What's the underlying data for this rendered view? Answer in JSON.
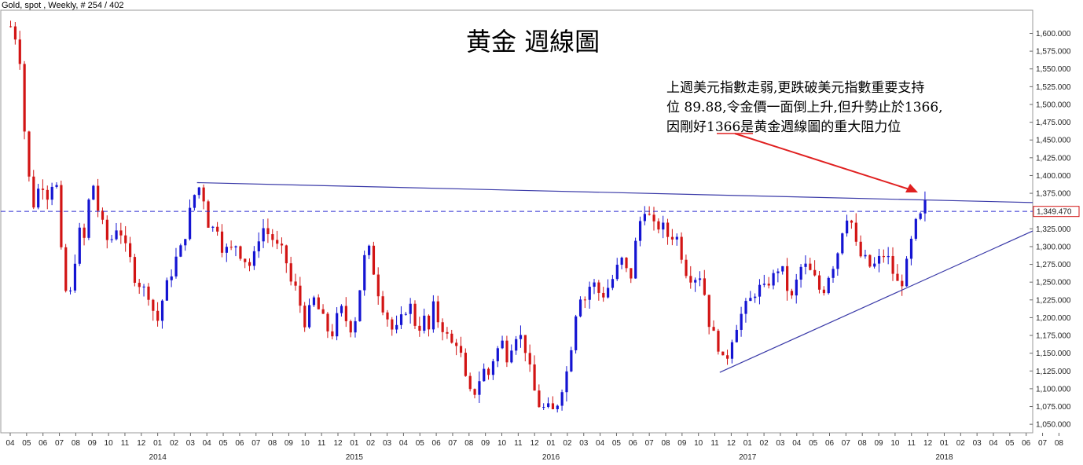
{
  "header": {
    "instrument": "Gold, spot , Weekly, # 254 / 402"
  },
  "colors": {
    "up": "#1414d2",
    "down": "#d21414",
    "trendline": "#3a3aa8",
    "price_line": "#2a2ad0",
    "arrow": "#e02020",
    "last_price_box": "#d21414"
  },
  "chart_data": {
    "type": "candlestick",
    "title": "黄金 週線圖",
    "annotation_lines": [
      "上週美元指數走弱,更跌破美元指數重要支持",
      "位 89.88,令金價一面倒上升,但升勢止於1366,",
      "因剛好1366是黄金週線圖的重大阻力位"
    ],
    "last_price": 1349.47,
    "last_price_label": "1,349.470",
    "ylim": [
      1040,
      1625
    ],
    "y_ticks": [
      {
        "value": 1600,
        "label": "1,600.000"
      },
      {
        "value": 1575,
        "label": "1,575.000"
      },
      {
        "value": 1550,
        "label": "1,550.000"
      },
      {
        "value": 1525,
        "label": "1,525.000"
      },
      {
        "value": 1500,
        "label": "1,500.000"
      },
      {
        "value": 1475,
        "label": "1,475.000"
      },
      {
        "value": 1450,
        "label": "1,450.000"
      },
      {
        "value": 1425,
        "label": "1,425.000"
      },
      {
        "value": 1400,
        "label": "1,400.000"
      },
      {
        "value": 1375,
        "label": "1,375.000"
      },
      {
        "value": 1325,
        "label": "1,325.000"
      },
      {
        "value": 1300,
        "label": "1,300.000"
      },
      {
        "value": 1275,
        "label": "1,275.000"
      },
      {
        "value": 1250,
        "label": "1,250.000"
      },
      {
        "value": 1225,
        "label": "1,225.000"
      },
      {
        "value": 1200,
        "label": "1,200.000"
      },
      {
        "value": 1175,
        "label": "1,175.000"
      },
      {
        "value": 1150,
        "label": "1,150.000"
      },
      {
        "value": 1125,
        "label": "1,125.000"
      },
      {
        "value": 1100,
        "label": "1,100.000"
      },
      {
        "value": 1075,
        "label": "1,075.000"
      },
      {
        "value": 1050,
        "label": "1,050.000"
      }
    ],
    "x_months": [
      "04",
      "05",
      "06",
      "07",
      "08",
      "09",
      "10",
      "11",
      "12",
      "01",
      "02",
      "03",
      "04",
      "05",
      "06",
      "07",
      "08",
      "09",
      "10",
      "11",
      "12",
      "01",
      "02",
      "03",
      "04",
      "05",
      "06",
      "07",
      "08",
      "09",
      "10",
      "11",
      "12",
      "01",
      "02",
      "03",
      "04",
      "05",
      "06",
      "07",
      "08",
      "09",
      "10",
      "11",
      "12",
      "01",
      "02",
      "03",
      "04",
      "05",
      "06",
      "07",
      "08",
      "09",
      "10",
      "11",
      "12",
      "01",
      "02",
      "03",
      "04",
      "05",
      "06",
      "07",
      "08"
    ],
    "x_years": [
      {
        "month_index": 9,
        "label": "2014"
      },
      {
        "month_index": 21,
        "label": "2015"
      },
      {
        "month_index": 33,
        "label": "2016"
      },
      {
        "month_index": 45,
        "label": "2017"
      },
      {
        "month_index": 57,
        "label": "2018"
      }
    ],
    "price_path": [
      [
        0,
        1610
      ],
      [
        0.3,
        1595
      ],
      [
        0.6,
        1560
      ],
      [
        0.9,
        1440
      ],
      [
        1.2,
        1380
      ],
      [
        1.5,
        1350
      ],
      [
        1.8,
        1400
      ],
      [
        2.2,
        1370
      ],
      [
        2.5,
        1390
      ],
      [
        2.8,
        1385
      ],
      [
        3.0,
        1310
      ],
      [
        3.3,
        1240
      ],
      [
        3.6,
        1225
      ],
      [
        3.9,
        1280
      ],
      [
        4.2,
        1320
      ],
      [
        4.5,
        1310
      ],
      [
        4.8,
        1370
      ],
      [
        5.1,
        1390
      ],
      [
        5.4,
        1340
      ],
      [
        5.7,
        1325
      ],
      [
        6.0,
        1300
      ],
      [
        6.3,
        1320
      ],
      [
        6.6,
        1335
      ],
      [
        6.9,
        1300
      ],
      [
        7.2,
        1290
      ],
      [
        7.5,
        1260
      ],
      [
        7.8,
        1250
      ],
      [
        8.1,
        1240
      ],
      [
        8.4,
        1235
      ],
      [
        8.7,
        1210
      ],
      [
        9.0,
        1195
      ],
      [
        9.3,
        1230
      ],
      [
        9.6,
        1250
      ],
      [
        9.9,
        1270
      ],
      [
        10.2,
        1290
      ],
      [
        10.5,
        1300
      ],
      [
        10.8,
        1335
      ],
      [
        11.1,
        1365
      ],
      [
        11.4,
        1385
      ],
      [
        11.7,
        1380
      ],
      [
        12.0,
        1335
      ],
      [
        12.3,
        1325
      ],
      [
        12.6,
        1330
      ],
      [
        12.9,
        1300
      ],
      [
        13.2,
        1295
      ],
      [
        13.5,
        1295
      ],
      [
        13.8,
        1305
      ],
      [
        14.1,
        1285
      ],
      [
        14.4,
        1280
      ],
      [
        14.7,
        1270
      ],
      [
        15.0,
        1300
      ],
      [
        15.3,
        1330
      ],
      [
        15.6,
        1320
      ],
      [
        15.9,
        1315
      ],
      [
        16.2,
        1300
      ],
      [
        16.5,
        1295
      ],
      [
        16.8,
        1280
      ],
      [
        17.1,
        1250
      ],
      [
        17.4,
        1240
      ],
      [
        17.7,
        1215
      ],
      [
        18.0,
        1190
      ],
      [
        18.3,
        1215
      ],
      [
        18.6,
        1230
      ],
      [
        18.9,
        1200
      ],
      [
        19.2,
        1195
      ],
      [
        19.5,
        1170
      ],
      [
        19.8,
        1190
      ],
      [
        20.1,
        1215
      ],
      [
        20.4,
        1200
      ],
      [
        20.7,
        1185
      ],
      [
        21.0,
        1195
      ],
      [
        21.3,
        1240
      ],
      [
        21.6,
        1285
      ],
      [
        21.9,
        1295
      ],
      [
        22.2,
        1260
      ],
      [
        22.5,
        1230
      ],
      [
        22.8,
        1210
      ],
      [
        23.1,
        1195
      ],
      [
        23.4,
        1175
      ],
      [
        23.7,
        1190
      ],
      [
        24.0,
        1205
      ],
      [
        24.3,
        1225
      ],
      [
        24.6,
        1195
      ],
      [
        24.9,
        1185
      ],
      [
        25.2,
        1200
      ],
      [
        25.5,
        1180
      ],
      [
        25.8,
        1215
      ],
      [
        26.1,
        1195
      ],
      [
        26.4,
        1185
      ],
      [
        26.7,
        1170
      ],
      [
        27.0,
        1160
      ],
      [
        27.3,
        1170
      ],
      [
        27.6,
        1130
      ],
      [
        27.9,
        1095
      ],
      [
        28.2,
        1090
      ],
      [
        28.5,
        1105
      ],
      [
        28.8,
        1130
      ],
      [
        29.1,
        1115
      ],
      [
        29.4,
        1140
      ],
      [
        29.7,
        1155
      ],
      [
        30.0,
        1165
      ],
      [
        30.3,
        1145
      ],
      [
        30.6,
        1165
      ],
      [
        30.9,
        1180
      ],
      [
        31.2,
        1170
      ],
      [
        31.5,
        1150
      ],
      [
        31.8,
        1110
      ],
      [
        32.1,
        1085
      ],
      [
        32.4,
        1070
      ],
      [
        32.7,
        1075
      ],
      [
        33.0,
        1065
      ],
      [
        33.3,
        1075
      ],
      [
        33.6,
        1100
      ],
      [
        33.9,
        1120
      ],
      [
        34.2,
        1160
      ],
      [
        34.5,
        1210
      ],
      [
        34.8,
        1235
      ],
      [
        35.1,
        1225
      ],
      [
        35.4,
        1250
      ],
      [
        35.7,
        1245
      ],
      [
        36.0,
        1230
      ],
      [
        36.3,
        1235
      ],
      [
        36.6,
        1250
      ],
      [
        36.9,
        1260
      ],
      [
        37.2,
        1285
      ],
      [
        37.5,
        1270
      ],
      [
        37.8,
        1250
      ],
      [
        38.1,
        1300
      ],
      [
        38.4,
        1335
      ],
      [
        38.7,
        1355
      ],
      [
        39.0,
        1340
      ],
      [
        39.3,
        1325
      ],
      [
        39.6,
        1330
      ],
      [
        39.9,
        1325
      ],
      [
        40.2,
        1310
      ],
      [
        40.5,
        1320
      ],
      [
        40.8,
        1305
      ],
      [
        41.1,
        1270
      ],
      [
        41.4,
        1260
      ],
      [
        41.7,
        1255
      ],
      [
        42.0,
        1265
      ],
      [
        42.3,
        1240
      ],
      [
        42.6,
        1195
      ],
      [
        42.9,
        1175
      ],
      [
        43.2,
        1160
      ],
      [
        43.5,
        1135
      ],
      [
        43.8,
        1150
      ],
      [
        44.1,
        1180
      ],
      [
        44.4,
        1195
      ],
      [
        44.7,
        1210
      ],
      [
        45.0,
        1220
      ],
      [
        45.3,
        1230
      ],
      [
        45.6,
        1245
      ],
      [
        45.9,
        1235
      ],
      [
        46.2,
        1250
      ],
      [
        46.5,
        1255
      ],
      [
        46.8,
        1270
      ],
      [
        47.1,
        1265
      ],
      [
        47.4,
        1240
      ],
      [
        47.7,
        1225
      ],
      [
        48.0,
        1255
      ],
      [
        48.3,
        1275
      ],
      [
        48.6,
        1270
      ],
      [
        48.9,
        1260
      ],
      [
        49.2,
        1250
      ],
      [
        49.5,
        1230
      ],
      [
        49.8,
        1255
      ],
      [
        50.1,
        1270
      ],
      [
        50.4,
        1285
      ],
      [
        50.7,
        1320
      ],
      [
        51.0,
        1345
      ],
      [
        51.3,
        1335
      ],
      [
        51.6,
        1300
      ],
      [
        51.9,
        1285
      ],
      [
        52.2,
        1280
      ],
      [
        52.5,
        1270
      ],
      [
        52.8,
        1275
      ],
      [
        53.1,
        1285
      ],
      [
        53.4,
        1290
      ],
      [
        53.7,
        1275
      ],
      [
        54.0,
        1250
      ],
      [
        54.3,
        1245
      ],
      [
        54.6,
        1265
      ],
      [
        54.9,
        1300
      ],
      [
        55.2,
        1330
      ],
      [
        55.5,
        1340
      ],
      [
        55.8,
        1360
      ]
    ]
  }
}
